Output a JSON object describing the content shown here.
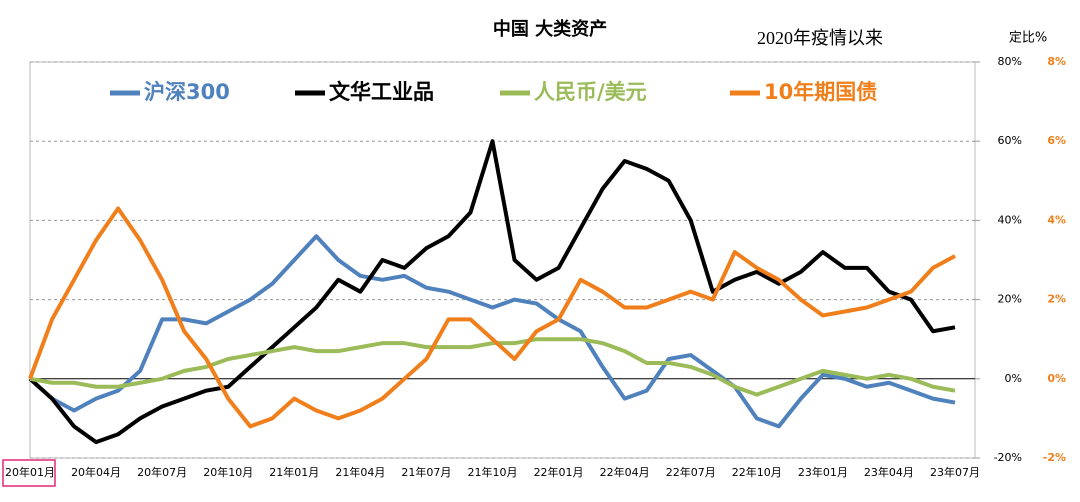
{
  "chart_data": {
    "type": "line",
    "title": "中国  大类资产",
    "subtitle": "2020年疫情以来",
    "y_axis_label": "定比%",
    "categories": [
      "20年01月",
      null,
      null,
      "20年04月",
      null,
      null,
      "20年07月",
      null,
      null,
      "20年10月",
      null,
      null,
      "21年01月",
      null,
      null,
      "21年04月",
      null,
      null,
      "21年07月",
      null,
      null,
      "21年10月",
      null,
      null,
      "22年01月",
      null,
      null,
      "22年04月",
      null,
      null,
      "22年07月",
      null,
      null,
      "22年10月",
      null,
      null,
      "23年01月",
      null,
      null,
      "23年04月",
      null,
      null,
      "23年07月"
    ],
    "series": [
      {
        "name": "沪深300",
        "color": "#4f81bd",
        "values": [
          0,
          -5,
          -8,
          -5,
          -3,
          2,
          15,
          15,
          14,
          17,
          20,
          24,
          30,
          36,
          30,
          26,
          25,
          26,
          23,
          22,
          20,
          18,
          20,
          19,
          15,
          12,
          3,
          -5,
          -3,
          5,
          6,
          2,
          -2,
          -10,
          -12,
          -5,
          1,
          0,
          -2,
          -1,
          -3,
          -5,
          -6
        ]
      },
      {
        "name": "文华工业品",
        "color": "#000000",
        "values": [
          0,
          -5,
          -12,
          -16,
          -14,
          -10,
          -7,
          -5,
          -3,
          -2,
          3,
          8,
          13,
          18,
          25,
          22,
          30,
          28,
          33,
          36,
          42,
          60,
          30,
          25,
          28,
          38,
          48,
          55,
          53,
          50,
          40,
          22,
          25,
          27,
          24,
          27,
          32,
          28,
          28,
          22,
          20,
          12,
          13
        ]
      },
      {
        "name": "人民币/美元",
        "color": "#9bbb59",
        "values": [
          0,
          -1,
          -1,
          -2,
          -2,
          -1,
          0,
          2,
          3,
          5,
          6,
          7,
          8,
          7,
          7,
          8,
          9,
          9,
          8,
          8,
          8,
          9,
          9,
          10,
          10,
          10,
          9,
          7,
          4,
          4,
          3,
          1,
          -2,
          -4,
          -2,
          0,
          2,
          1,
          0,
          1,
          0,
          -2,
          -3
        ]
      },
      {
        "name": "10年期国债",
        "color": "#f07f1b",
        "axis": "y2",
        "values": [
          0,
          1.5,
          2.5,
          3.5,
          4.3,
          3.5,
          2.5,
          1.2,
          0.5,
          -0.5,
          -1.2,
          -1,
          -0.5,
          -0.8,
          -1,
          -0.8,
          -0.5,
          0,
          0.5,
          1.5,
          1.5,
          1,
          0.5,
          1.2,
          1.5,
          2.5,
          2.2,
          1.8,
          1.8,
          2,
          2.2,
          2,
          3.2,
          2.8,
          2.5,
          2,
          1.6,
          1.7,
          1.8,
          2,
          2.2,
          2.8,
          3.1
        ]
      }
    ],
    "ylim": [
      -20,
      80
    ],
    "yticks": [
      {
        "value": -20,
        "label": "-20%"
      },
      {
        "value": 0,
        "label": "0%"
      },
      {
        "value": 20,
        "label": "20%"
      },
      {
        "value": 40,
        "label": "40%"
      },
      {
        "value": 60,
        "label": "60%"
      },
      {
        "value": 80,
        "label": "80%"
      }
    ],
    "y2lim": [
      -2,
      8
    ],
    "y2ticks": [
      {
        "value": -2,
        "label": "-2%"
      },
      {
        "value": 0,
        "label": "0%"
      },
      {
        "value": 2,
        "label": "2%"
      },
      {
        "value": 4,
        "label": "4%"
      },
      {
        "value": 6,
        "label": "6%"
      },
      {
        "value": 8,
        "label": "8%"
      }
    ],
    "y2color": "#f07f1b",
    "grid": true
  }
}
